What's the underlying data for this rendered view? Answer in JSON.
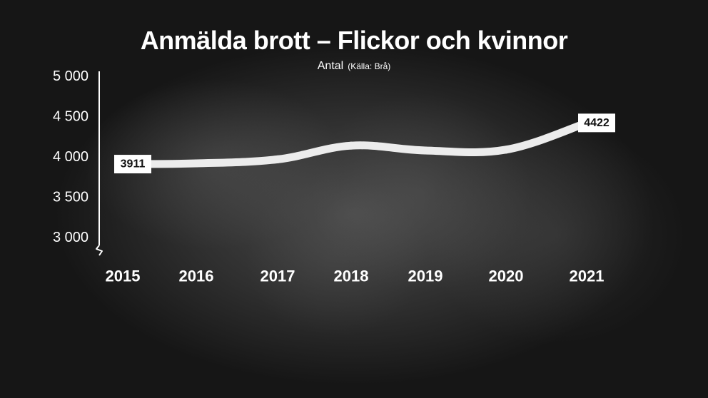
{
  "chart_data": {
    "type": "line",
    "title": "Anmälda brott – Flickor och kvinnor",
    "subtitle": "Antal",
    "source": "(Källa: Brå)",
    "xlabel": "",
    "ylabel": "",
    "categories": [
      "2015",
      "2016",
      "2017",
      "2018",
      "2019",
      "2020",
      "2021"
    ],
    "series": [
      {
        "values": [
          3911,
          3920,
          3970,
          4140,
          4080,
          4090,
          4422
        ]
      }
    ],
    "data_labels": [
      {
        "category": "2015",
        "text": "3911"
      },
      {
        "category": "2021",
        "text": "4422"
      }
    ],
    "ylim": [
      3000,
      5000
    ],
    "y_ticks": [
      {
        "value": 5000,
        "label": "5 000"
      },
      {
        "value": 4500,
        "label": "4 500"
      },
      {
        "value": 4000,
        "label": "4 000"
      },
      {
        "value": 3500,
        "label": "3 500"
      },
      {
        "value": 3000,
        "label": "3 000"
      }
    ],
    "axis_break": true,
    "grid": false,
    "legend": "none",
    "colors": {
      "line": "#ececec",
      "text": "#ffffff",
      "label_box": "#ffffff",
      "label_text": "#111111"
    }
  }
}
